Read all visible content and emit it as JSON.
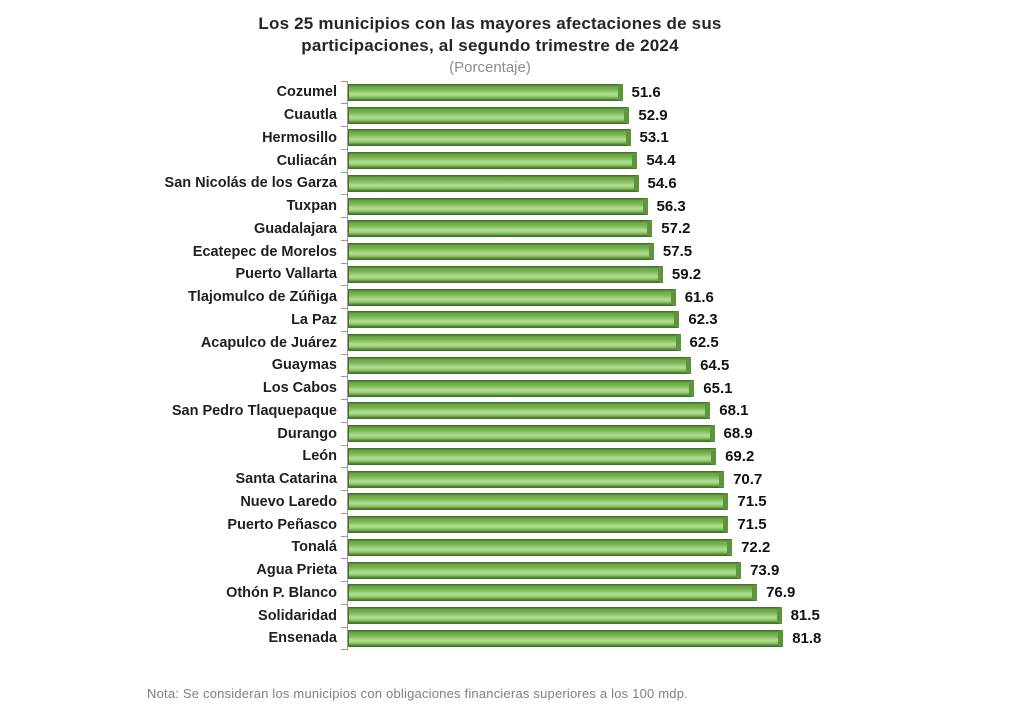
{
  "header": {
    "title_line1": "Los 25 municipios con las mayores afectaciones de sus",
    "title_line2": "participaciones, al segundo trimestre de 2024",
    "subtitle": "(Porcentaje)"
  },
  "footer": {
    "note": "Nota: Se consideran los municipios con obligaciones financieras superiores a los 100 mdp."
  },
  "chart_data": {
    "type": "bar",
    "orientation": "horizontal",
    "title": "Los 25 municipios con las mayores afectaciones de sus participaciones, al segundo trimestre de 2024",
    "subtitle": "(Porcentaje)",
    "xlabel": "",
    "ylabel": "",
    "xlim": [
      0,
      88
    ],
    "grid": false,
    "legend": false,
    "value_labels": true,
    "value_label_decimals": 1,
    "bar_fill_color": "#7ab655",
    "bar_highlight_color": "#b2dc92",
    "bar_border_color": "#47702a",
    "bar_cap_color": "#5c953a",
    "axis_color": "#9a9a9a",
    "categories": [
      "Cozumel",
      "Cuautla",
      "Hermosillo",
      "Culiacán",
      "San Nicolás de los Garza",
      "Tuxpan",
      "Guadalajara",
      "Ecatepec de Morelos",
      "Puerto Vallarta",
      "Tlajomulco de Zúñiga",
      "La Paz",
      "Acapulco de Juárez",
      "Guaymas",
      "Los Cabos",
      "San Pedro Tlaquepaque",
      "Durango",
      "León",
      "Santa Catarina",
      "Nuevo Laredo",
      "Puerto Peñasco",
      "Tonalá",
      "Agua Prieta",
      "Othón P. Blanco",
      "Solidaridad",
      "Ensenada"
    ],
    "values": [
      51.6,
      52.9,
      53.1,
      54.4,
      54.6,
      56.3,
      57.2,
      57.5,
      59.2,
      61.6,
      62.3,
      62.5,
      64.5,
      65.1,
      68.1,
      68.9,
      69.2,
      70.7,
      71.5,
      71.5,
      72.2,
      73.9,
      76.9,
      81.5,
      81.8
    ]
  }
}
